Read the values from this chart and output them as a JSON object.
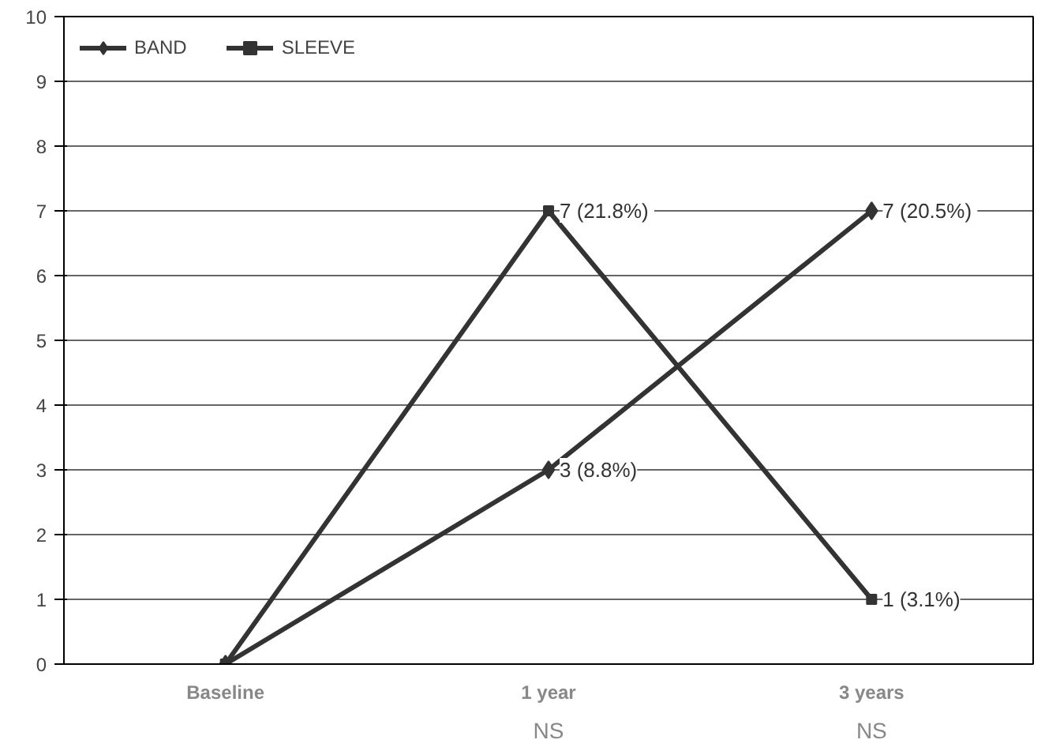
{
  "chart_data": {
    "type": "line",
    "categories": [
      "Baseline",
      "1 year",
      "3 years"
    ],
    "series": [
      {
        "name": "BAND",
        "color": "#333333",
        "marker": "diamond",
        "values": [
          0,
          3,
          7
        ],
        "value_labels": [
          null,
          "3 (8.8%)",
          "7  (20.5%)"
        ]
      },
      {
        "name": "SLEEVE",
        "color": "#333333",
        "marker": "square",
        "values": [
          0,
          7,
          1
        ],
        "value_labels": [
          null,
          "7  (21.8%)",
          "1 (3.1%)"
        ]
      }
    ],
    "ylim": [
      0,
      10
    ],
    "yticks": [
      0,
      1,
      2,
      3,
      4,
      5,
      6,
      7,
      8,
      9,
      10
    ],
    "grid": "y",
    "legend": "top left",
    "annotations": [
      "NS",
      "NS"
    ]
  }
}
